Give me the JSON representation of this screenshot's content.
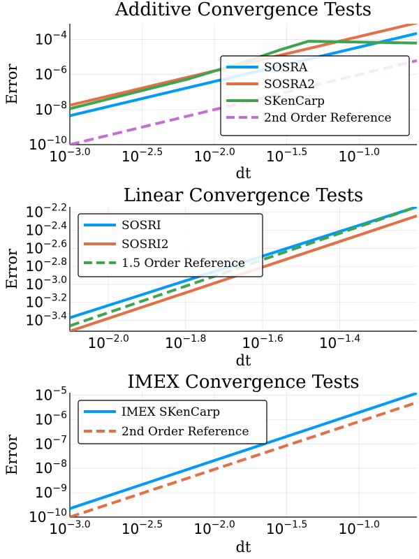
{
  "chart_data": [
    {
      "type": "line",
      "title": "Additive Convergence Tests",
      "xlabel": "dt",
      "ylabel": "Error",
      "xscale": "log10",
      "yscale": "log10",
      "xlim_log10": [
        -3.0,
        -0.6
      ],
      "ylim_log10": [
        -10,
        -3.1
      ],
      "xticks": [
        {
          "base": "10",
          "exp": "−3.0"
        },
        {
          "base": "10",
          "exp": "−2.5"
        },
        {
          "base": "10",
          "exp": "−2.0"
        },
        {
          "base": "10",
          "exp": "−1.5"
        },
        {
          "base": "10",
          "exp": "−1.0"
        }
      ],
      "yticks": [
        {
          "base": "10",
          "exp": "−10"
        },
        {
          "base": "10",
          "exp": "−8"
        },
        {
          "base": "10",
          "exp": "−6"
        },
        {
          "base": "10",
          "exp": "−4"
        }
      ],
      "grid": true,
      "legend_position": "right",
      "series": [
        {
          "name": "SOSRA",
          "color": "#009AFA",
          "dash": "solid",
          "x_log10": [
            -3.0,
            -0.6
          ],
          "y_log10": [
            -8.35,
            -3.65
          ]
        },
        {
          "name": "SOSRA2",
          "color": "#E26F46",
          "dash": "solid",
          "x_log10": [
            -3.0,
            -0.6
          ],
          "y_log10": [
            -7.75,
            -3.05
          ]
        },
        {
          "name": "SKenCarp",
          "color": "#3EA44E",
          "dash": "solid",
          "x_log10": [
            -3.0,
            -2.18,
            -1.78,
            -1.55,
            -1.35,
            -0.6
          ],
          "y_log10": [
            -7.95,
            -6.25,
            -5.25,
            -4.6,
            -4.1,
            -4.2
          ]
        },
        {
          "name": "2nd Order Reference",
          "color": "#C271D2",
          "dash": "dash",
          "x_log10": [
            -3.0,
            -0.6
          ],
          "y_log10": [
            -10.0,
            -5.2
          ]
        }
      ]
    },
    {
      "type": "line",
      "title": "Linear Convergence Tests",
      "xlabel": "dt",
      "ylabel": "Error",
      "xscale": "log10",
      "yscale": "log10",
      "xlim_log10": [
        -2.1,
        -1.2
      ],
      "ylim_log10": [
        -3.52,
        -2.14
      ],
      "xticks": [
        {
          "base": "10",
          "exp": "−2.0"
        },
        {
          "base": "10",
          "exp": "−1.8"
        },
        {
          "base": "10",
          "exp": "−1.6"
        },
        {
          "base": "10",
          "exp": "−1.4"
        }
      ],
      "yticks": [
        {
          "base": "10",
          "exp": "−3.4"
        },
        {
          "base": "10",
          "exp": "−3.2"
        },
        {
          "base": "10",
          "exp": "−3.0"
        },
        {
          "base": "10",
          "exp": "−2.8"
        },
        {
          "base": "10",
          "exp": "−2.6"
        },
        {
          "base": "10",
          "exp": "−2.4"
        },
        {
          "base": "10",
          "exp": "−2.2"
        }
      ],
      "grid": true,
      "legend_position": "top-left",
      "series": [
        {
          "name": "SOSRI",
          "color": "#009AFA",
          "dash": "solid",
          "x_log10": [
            -2.1,
            -1.2
          ],
          "y_log10": [
            -3.37,
            -2.14
          ]
        },
        {
          "name": "SOSRI2",
          "color": "#E26F46",
          "dash": "solid",
          "x_log10": [
            -2.1,
            -1.2
          ],
          "y_log10": [
            -3.52,
            -2.24
          ]
        },
        {
          "name": "1.5 Order Reference",
          "color": "#3EA44E",
          "dash": "dash",
          "x_log10": [
            -2.1,
            -1.2
          ],
          "y_log10": [
            -3.46,
            -2.14
          ]
        }
      ]
    },
    {
      "type": "line",
      "title": "IMEX Convergence Tests",
      "xlabel": "dt",
      "ylabel": "Error",
      "xscale": "log10",
      "yscale": "log10",
      "xlim_log10": [
        -3.0,
        -0.6
      ],
      "ylim_log10": [
        -10,
        -4.9
      ],
      "xticks": [
        {
          "base": "10",
          "exp": "−3.0"
        },
        {
          "base": "10",
          "exp": "−2.5"
        },
        {
          "base": "10",
          "exp": "−2.0"
        },
        {
          "base": "10",
          "exp": "−1.5"
        },
        {
          "base": "10",
          "exp": "−1.0"
        }
      ],
      "yticks": [
        {
          "base": "10",
          "exp": "−10"
        },
        {
          "base": "10",
          "exp": "−9"
        },
        {
          "base": "10",
          "exp": "−8"
        },
        {
          "base": "10",
          "exp": "−7"
        },
        {
          "base": "10",
          "exp": "−6"
        },
        {
          "base": "10",
          "exp": "−5"
        }
      ],
      "grid": true,
      "legend_position": "top-left",
      "series": [
        {
          "name": "IMEX SKenCarp",
          "color": "#009AFA",
          "dash": "solid",
          "x_log10": [
            -3.0,
            -0.6
          ],
          "y_log10": [
            -9.65,
            -4.92
          ]
        },
        {
          "name": "2nd Order Reference",
          "color": "#E26F46",
          "dash": "dash",
          "x_log10": [
            -3.0,
            -0.6
          ],
          "y_log10": [
            -10.0,
            -5.3
          ]
        }
      ]
    }
  ]
}
